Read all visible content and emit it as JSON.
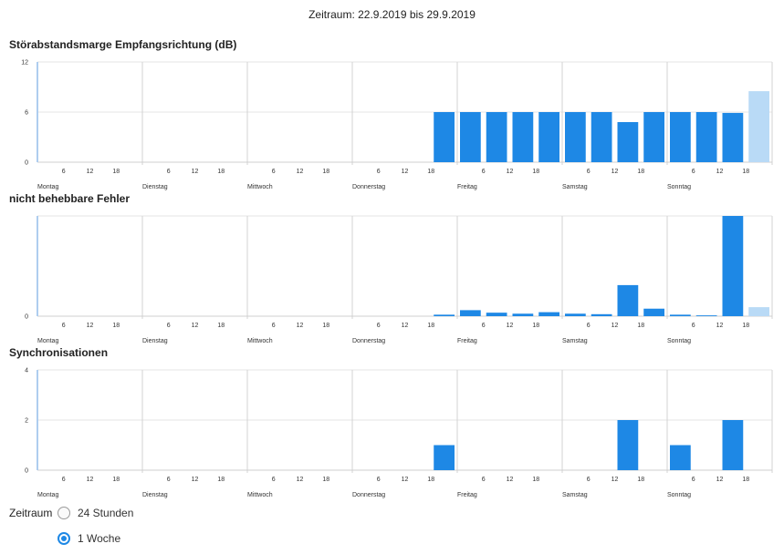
{
  "header": {
    "period_text": "Zeitraum: 22.9.2019 bis 29.9.2019"
  },
  "colors": {
    "bar": "#1e88e5",
    "bar_current": "#b9daf6",
    "grid": "#e5e5e5",
    "day_divider": "#d3d3d3",
    "axis": "#aecdef"
  },
  "days": [
    "Montag",
    "Dienstag",
    "Mittwoch",
    "Donnerstag",
    "Freitag",
    "Samstag",
    "Sonntag"
  ],
  "hour_ticks": [
    "6",
    "12",
    "18"
  ],
  "chart_data": [
    {
      "type": "bar",
      "title": "Störabstandsmarge Empfangsrichtung (dB)",
      "ylim": [
        0,
        12
      ],
      "yticks": [
        "0",
        "6",
        "12"
      ],
      "bars": [
        {
          "slot": 15,
          "value": 6
        },
        {
          "slot": 16,
          "value": 6
        },
        {
          "slot": 17,
          "value": 6
        },
        {
          "slot": 18,
          "value": 6
        },
        {
          "slot": 19,
          "value": 6
        },
        {
          "slot": 20,
          "value": 6
        },
        {
          "slot": 21,
          "value": 6
        },
        {
          "slot": 22,
          "value": 4.8
        },
        {
          "slot": 23,
          "value": 6
        },
        {
          "slot": 24,
          "value": 6
        },
        {
          "slot": 25,
          "value": 6
        },
        {
          "slot": 26,
          "value": 5.9
        },
        {
          "slot": 27,
          "value": 8.5,
          "current": true
        }
      ]
    },
    {
      "type": "bar",
      "title": "nicht behebbare Fehler",
      "ylim": [
        0,
        100
      ],
      "yticks": [
        "0"
      ],
      "bars": [
        {
          "slot": 15,
          "value": 1.5
        },
        {
          "slot": 16,
          "value": 6
        },
        {
          "slot": 17,
          "value": 3.5
        },
        {
          "slot": 18,
          "value": 2.5
        },
        {
          "slot": 19,
          "value": 4
        },
        {
          "slot": 20,
          "value": 2.5
        },
        {
          "slot": 21,
          "value": 2
        },
        {
          "slot": 22,
          "value": 31
        },
        {
          "slot": 23,
          "value": 7.5
        },
        {
          "slot": 24,
          "value": 1.5
        },
        {
          "slot": 25,
          "value": 0.8
        },
        {
          "slot": 26,
          "value": 100
        },
        {
          "slot": 27,
          "value": 9,
          "current": true
        }
      ]
    },
    {
      "type": "bar",
      "title": "Synchronisationen",
      "ylim": [
        0,
        4
      ],
      "yticks": [
        "0",
        "2",
        "4"
      ],
      "bars": [
        {
          "slot": 15,
          "value": 1
        },
        {
          "slot": 22,
          "value": 2
        },
        {
          "slot": 24,
          "value": 1
        },
        {
          "slot": 26,
          "value": 2
        }
      ]
    }
  ],
  "controls": {
    "label": "Zeitraum",
    "options": [
      {
        "label": "24 Stunden",
        "selected": false
      },
      {
        "label": "1 Woche",
        "selected": true
      }
    ]
  }
}
